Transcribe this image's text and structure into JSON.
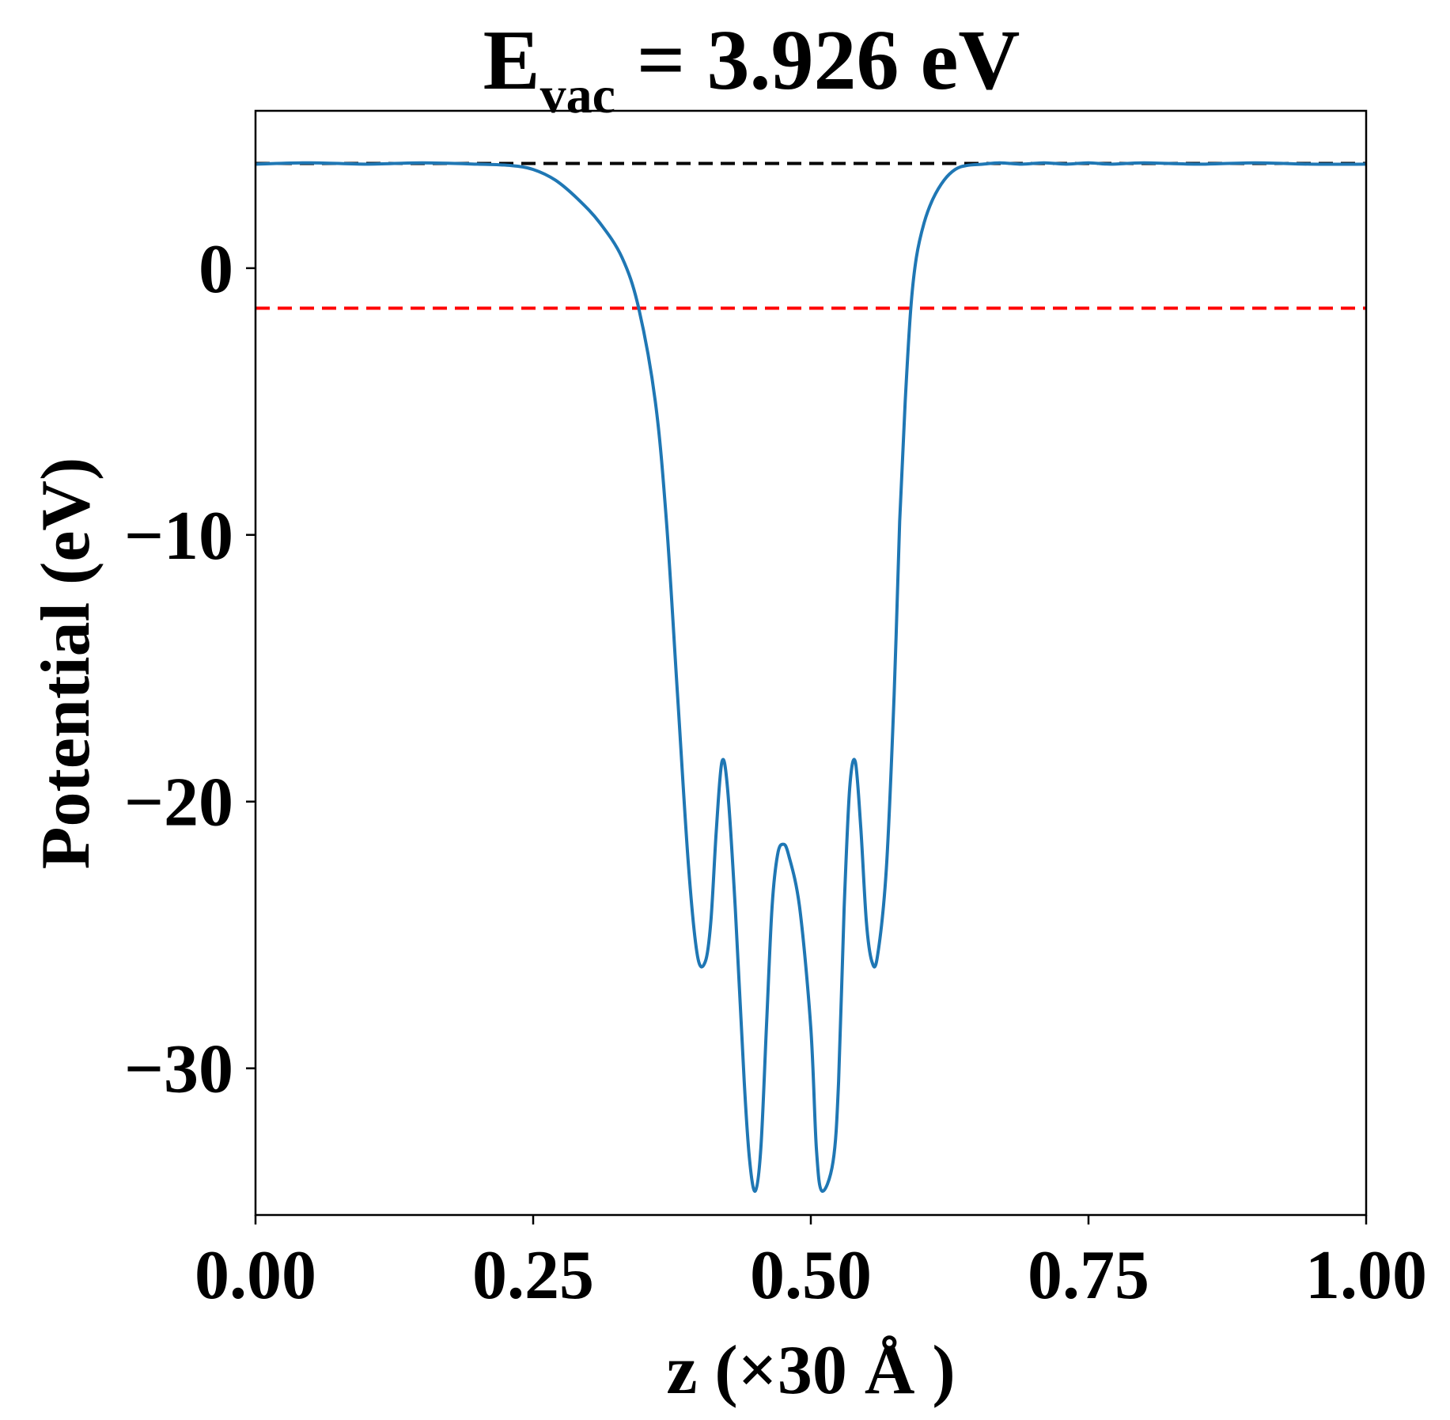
{
  "chart_data": {
    "type": "line",
    "title": {
      "main": "E",
      "subscript": "vac",
      "rest": " = 3.926 eV"
    },
    "xlabel": "z (×30 Å )",
    "ylabel": "Potential (eV)",
    "xlim": [
      0.0,
      1.0
    ],
    "ylim": [
      -35.5,
      5.9
    ],
    "xticks": [
      0.0,
      0.25,
      0.5,
      0.75,
      1.0
    ],
    "xtick_labels": [
      "0.00",
      "0.25",
      "0.50",
      "0.75",
      "1.00"
    ],
    "yticks": [
      0,
      -10,
      -20,
      -30
    ],
    "ytick_labels": [
      "0",
      "−10",
      "−20",
      "−30"
    ],
    "grid": false,
    "reference_lines": [
      {
        "y": 3.926,
        "color": "#000000",
        "style": "dashed"
      },
      {
        "y": -1.5,
        "color": "#ff0000",
        "style": "dashed"
      }
    ],
    "series": [
      {
        "color": "#1f77b4",
        "x": [
          0.0,
          0.05,
          0.1,
          0.15,
          0.2,
          0.23,
          0.25,
          0.27,
          0.29,
          0.31,
          0.33,
          0.345,
          0.36,
          0.37,
          0.38,
          0.39,
          0.398,
          0.405,
          0.41,
          0.415,
          0.42,
          0.425,
          0.432,
          0.44,
          0.445,
          0.45,
          0.455,
          0.46,
          0.465,
          0.47,
          0.475,
          0.48,
          0.49,
          0.5,
          0.505,
          0.51,
          0.52,
          0.525,
          0.53,
          0.535,
          0.54,
          0.545,
          0.55,
          0.555,
          0.56,
          0.568,
          0.575,
          0.58,
          0.585,
          0.59,
          0.595,
          0.602,
          0.61,
          0.62,
          0.63,
          0.64,
          0.655,
          0.67,
          0.69,
          0.71,
          0.73,
          0.75,
          0.77,
          0.8,
          0.85,
          0.9,
          0.95,
          1.0
        ],
        "y": [
          3.9,
          3.95,
          3.9,
          3.95,
          3.9,
          3.85,
          3.7,
          3.3,
          2.6,
          1.7,
          0.4,
          -1.5,
          -5.0,
          -9.5,
          -16.0,
          -22.5,
          -25.8,
          -26.0,
          -24.5,
          -21.0,
          -18.5,
          -19.5,
          -24.0,
          -30.5,
          -33.5,
          -34.6,
          -33.0,
          -28.5,
          -24.0,
          -22.0,
          -21.6,
          -22.0,
          -24.0,
          -28.5,
          -33.0,
          -34.6,
          -33.5,
          -30.5,
          -24.0,
          -19.5,
          -18.5,
          -21.0,
          -24.5,
          -26.0,
          -25.8,
          -22.5,
          -16.0,
          -9.5,
          -5.0,
          -1.5,
          0.4,
          1.7,
          2.6,
          3.3,
          3.7,
          3.85,
          3.9,
          3.95,
          3.9,
          3.95,
          3.9,
          3.95,
          3.9,
          3.95,
          3.9,
          3.95,
          3.9,
          3.9
        ]
      }
    ]
  }
}
